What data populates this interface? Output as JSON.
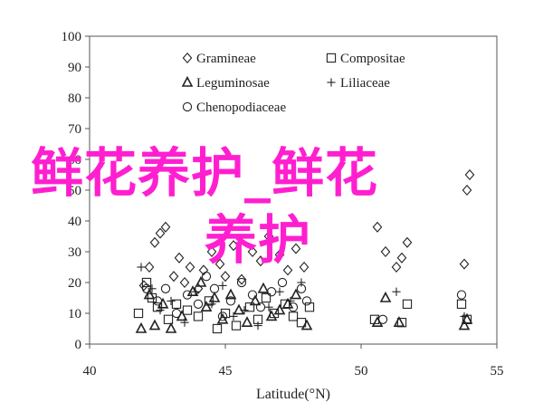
{
  "chart_data": {
    "type": "scatter",
    "xlabel": "Latitude(°N)",
    "ylabel": "",
    "xlim": [
      40,
      55
    ],
    "ylim": [
      0,
      100
    ],
    "xticks": [
      "40",
      "45",
      "50",
      "55"
    ],
    "yticks": [
      "0",
      "10",
      "20",
      "30",
      "40",
      "50",
      "60",
      "70",
      "80",
      "90",
      "100"
    ],
    "grid": false,
    "legend_position": "top-center",
    "series": [
      {
        "name": "Gramineae",
        "marker": "diamond",
        "points": [
          [
            42.0,
            19
          ],
          [
            42.2,
            25
          ],
          [
            42.4,
            33
          ],
          [
            42.6,
            36
          ],
          [
            42.8,
            38
          ],
          [
            43.1,
            22
          ],
          [
            43.3,
            28
          ],
          [
            43.5,
            20
          ],
          [
            43.7,
            25
          ],
          [
            44.0,
            18
          ],
          [
            44.2,
            24
          ],
          [
            44.5,
            30
          ],
          [
            44.8,
            26
          ],
          [
            45.0,
            22
          ],
          [
            45.3,
            32
          ],
          [
            45.6,
            21
          ],
          [
            46.0,
            30
          ],
          [
            46.3,
            27
          ],
          [
            46.6,
            35
          ],
          [
            47.0,
            29
          ],
          [
            47.3,
            24
          ],
          [
            47.6,
            31
          ],
          [
            47.9,
            25
          ],
          [
            50.6,
            38
          ],
          [
            50.9,
            30
          ],
          [
            51.3,
            25
          ],
          [
            51.5,
            28
          ],
          [
            51.7,
            33
          ],
          [
            53.8,
            26
          ],
          [
            54.0,
            55
          ],
          [
            53.9,
            50
          ]
        ]
      },
      {
        "name": "Compositae",
        "marker": "square",
        "points": [
          [
            41.8,
            10
          ],
          [
            42.1,
            20
          ],
          [
            42.3,
            15
          ],
          [
            42.5,
            12
          ],
          [
            42.9,
            8
          ],
          [
            43.2,
            13
          ],
          [
            43.6,
            11
          ],
          [
            44.0,
            9
          ],
          [
            44.4,
            14
          ],
          [
            44.7,
            5
          ],
          [
            45.0,
            10
          ],
          [
            45.4,
            6
          ],
          [
            45.9,
            12
          ],
          [
            46.2,
            8
          ],
          [
            46.5,
            15
          ],
          [
            46.8,
            10
          ],
          [
            47.2,
            13
          ],
          [
            47.5,
            9
          ],
          [
            47.8,
            7
          ],
          [
            48.1,
            12
          ],
          [
            50.5,
            8
          ],
          [
            51.5,
            7
          ],
          [
            51.7,
            13
          ],
          [
            53.7,
            13
          ],
          [
            53.9,
            8
          ]
        ]
      },
      {
        "name": "Leguminosae",
        "marker": "triangle",
        "points": [
          [
            41.9,
            5
          ],
          [
            42.2,
            16
          ],
          [
            42.4,
            6
          ],
          [
            42.7,
            13
          ],
          [
            43.0,
            5
          ],
          [
            43.4,
            9
          ],
          [
            43.8,
            17
          ],
          [
            44.1,
            20
          ],
          [
            44.3,
            12
          ],
          [
            44.6,
            15
          ],
          [
            44.9,
            8
          ],
          [
            45.2,
            16
          ],
          [
            45.5,
            11
          ],
          [
            45.8,
            7
          ],
          [
            46.1,
            14
          ],
          [
            46.4,
            18
          ],
          [
            46.7,
            9
          ],
          [
            47.0,
            11
          ],
          [
            47.3,
            13
          ],
          [
            47.6,
            16
          ],
          [
            48.0,
            6
          ],
          [
            50.6,
            7
          ],
          [
            50.9,
            15
          ],
          [
            51.4,
            7
          ],
          [
            53.8,
            6
          ],
          [
            53.9,
            8
          ]
        ]
      },
      {
        "name": "Liliaceae",
        "marker": "plus",
        "points": [
          [
            41.9,
            25
          ],
          [
            42.3,
            18
          ],
          [
            42.6,
            11
          ],
          [
            43.0,
            14
          ],
          [
            43.5,
            7
          ],
          [
            43.9,
            17
          ],
          [
            44.5,
            13
          ],
          [
            44.9,
            19
          ],
          [
            45.3,
            9
          ],
          [
            45.7,
            11
          ],
          [
            46.2,
            6
          ],
          [
            46.6,
            12
          ],
          [
            47.0,
            17
          ],
          [
            47.4,
            14
          ],
          [
            47.8,
            20
          ],
          [
            51.3,
            17
          ],
          [
            53.8,
            9
          ]
        ]
      },
      {
        "name": "Chenopodiaceae",
        "marker": "circle",
        "points": [
          [
            42.1,
            18
          ],
          [
            42.5,
            14
          ],
          [
            42.8,
            18
          ],
          [
            43.2,
            10
          ],
          [
            43.6,
            16
          ],
          [
            44.0,
            13
          ],
          [
            44.3,
            22
          ],
          [
            44.6,
            18
          ],
          [
            44.9,
            9
          ],
          [
            45.2,
            14
          ],
          [
            45.6,
            20
          ],
          [
            46.0,
            16
          ],
          [
            46.3,
            12
          ],
          [
            46.7,
            17
          ],
          [
            47.1,
            20
          ],
          [
            47.5,
            12
          ],
          [
            47.8,
            18
          ],
          [
            48.0,
            14
          ],
          [
            50.8,
            8
          ],
          [
            53.7,
            16
          ]
        ]
      }
    ]
  },
  "overlay": {
    "line1": "鲜花养护_鲜花",
    "line2": "养护"
  }
}
